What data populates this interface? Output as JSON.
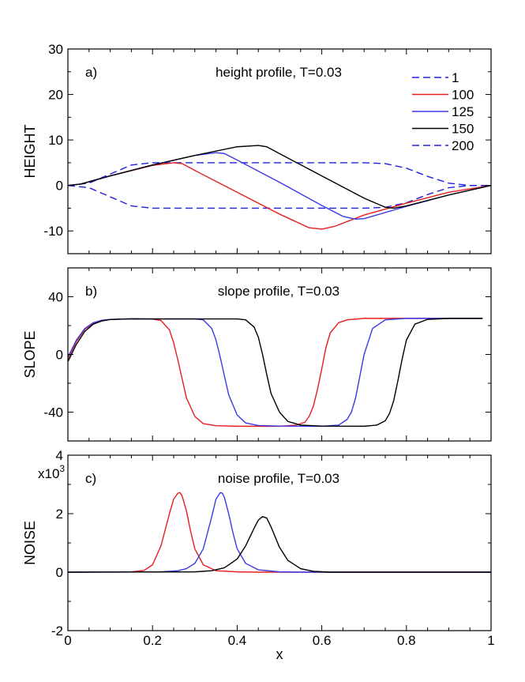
{
  "chart_data": [
    {
      "type": "line",
      "panel_label": "a)",
      "title": "height profile, T=0.03",
      "ylabel": "HEIGHT",
      "xlabel": "",
      "xlim": [
        0,
        1
      ],
      "ylim": [
        -15,
        30
      ],
      "yticks": [
        -10,
        0,
        10,
        20,
        30
      ],
      "ytick_labels": [
        "-10",
        "0",
        "10",
        "20",
        "30"
      ],
      "xticks": [
        0,
        0.2,
        0.4,
        0.6,
        0.8,
        1
      ],
      "xtick_labels": [
        "",
        "",
        "",
        "",
        "",
        ""
      ],
      "legend": [
        {
          "label": "1",
          "color": "#2020e0",
          "dash": "dashed"
        },
        {
          "label": "100",
          "color": "#e81e1e",
          "dash": "solid"
        },
        {
          "label": "125",
          "color": "#3a3ae8",
          "dash": "solid"
        },
        {
          "label": "150",
          "color": "#000000",
          "dash": "solid"
        },
        {
          "label": "200",
          "color": "#2020e0",
          "dash": "dashed"
        }
      ],
      "series": [
        {
          "name": "1",
          "color": "#2020e0",
          "dash": "dashed",
          "x": [
            0,
            0.05,
            0.1,
            0.15,
            0.2,
            0.25,
            0.3,
            0.4,
            0.5,
            0.6,
            0.7,
            0.75,
            0.8,
            0.85,
            0.9,
            0.95,
            1
          ],
          "y": [
            0,
            -0.5,
            -2.5,
            -4.5,
            -5,
            -5,
            -5,
            -5,
            -5,
            -5,
            -5,
            -4.8,
            -3.8,
            -2,
            -0.5,
            0,
            0
          ]
        },
        {
          "name": "200",
          "color": "#2020e0",
          "dash": "dashed",
          "x": [
            0,
            0.05,
            0.1,
            0.15,
            0.2,
            0.25,
            0.3,
            0.4,
            0.5,
            0.6,
            0.7,
            0.75,
            0.8,
            0.85,
            0.9,
            0.95,
            1
          ],
          "y": [
            0,
            0.5,
            2.5,
            4.5,
            5,
            5,
            5,
            5,
            5,
            5,
            5,
            4.8,
            3.8,
            2,
            0.5,
            0,
            0
          ]
        },
        {
          "name": "100",
          "color": "#e81e1e",
          "dash": "solid",
          "x": [
            0,
            0.03,
            0.1,
            0.2,
            0.25,
            0.27,
            0.3,
            0.4,
            0.5,
            0.57,
            0.6,
            0.63,
            0.7,
            0.8,
            0.9,
            1
          ],
          "y": [
            0,
            0.3,
            2.1,
            4.4,
            5,
            4.8,
            3.3,
            -1.5,
            -6.3,
            -9.3,
            -9.6,
            -9,
            -6.5,
            -3.9,
            -1.5,
            0
          ]
        },
        {
          "name": "125",
          "color": "#3a3ae8",
          "dash": "solid",
          "x": [
            0,
            0.03,
            0.1,
            0.2,
            0.3,
            0.35,
            0.37,
            0.4,
            0.5,
            0.6,
            0.65,
            0.68,
            0.7,
            0.8,
            0.9,
            1
          ],
          "y": [
            0,
            0.3,
            2.1,
            4.5,
            6.6,
            7.2,
            7,
            5.6,
            0.7,
            -4.4,
            -6.8,
            -7.4,
            -7.3,
            -4.6,
            -2.1,
            0
          ]
        },
        {
          "name": "150",
          "color": "#000000",
          "dash": "solid",
          "x": [
            0,
            0.03,
            0.1,
            0.2,
            0.3,
            0.4,
            0.45,
            0.47,
            0.5,
            0.6,
            0.7,
            0.75,
            0.77,
            0.8,
            0.9,
            1
          ],
          "y": [
            0,
            0.3,
            2.1,
            4.5,
            6.6,
            8.5,
            8.8,
            8.5,
            7,
            2.1,
            -2.8,
            -4.8,
            -5,
            -4.5,
            -2.1,
            0
          ]
        }
      ]
    },
    {
      "type": "line",
      "panel_label": "b)",
      "title": "slope profile, T=0.03",
      "ylabel": "SLOPE",
      "xlabel": "",
      "xlim": [
        0,
        1
      ],
      "ylim": [
        -60,
        60
      ],
      "yticks": [
        -40,
        0,
        40
      ],
      "ytick_labels": [
        "-40",
        "0",
        "40"
      ],
      "xticks": [
        0,
        0.2,
        0.4,
        0.6,
        0.8,
        1
      ],
      "xtick_labels": [
        "",
        "",
        "",
        "",
        "",
        ""
      ],
      "series": [
        {
          "name": "100",
          "color": "#e81e1e",
          "dash": "solid",
          "x": [
            0,
            0.01,
            0.02,
            0.04,
            0.06,
            0.08,
            0.1,
            0.15,
            0.2,
            0.22,
            0.24,
            0.25,
            0.26,
            0.27,
            0.28,
            0.3,
            0.32,
            0.35,
            0.4,
            0.5,
            0.54,
            0.56,
            0.57,
            0.58,
            0.59,
            0.6,
            0.61,
            0.62,
            0.64,
            0.66,
            0.7,
            0.8,
            0.9,
            0.98
          ],
          "y": [
            -3,
            3,
            9,
            17.5,
            21.5,
            23.5,
            24.3,
            24.7,
            24.5,
            23.5,
            17,
            8,
            -4,
            -17,
            -30,
            -43,
            -48,
            -49.4,
            -49.8,
            -49.8,
            -49,
            -47,
            -43,
            -36,
            -24,
            -10,
            5,
            15,
            22,
            24,
            25,
            25,
            25,
            25
          ]
        },
        {
          "name": "125",
          "color": "#3a3ae8",
          "dash": "solid",
          "x": [
            0,
            0.01,
            0.02,
            0.04,
            0.06,
            0.08,
            0.1,
            0.15,
            0.2,
            0.3,
            0.32,
            0.34,
            0.35,
            0.36,
            0.37,
            0.38,
            0.4,
            0.42,
            0.45,
            0.5,
            0.6,
            0.64,
            0.66,
            0.67,
            0.68,
            0.69,
            0.7,
            0.72,
            0.75,
            0.8,
            0.9,
            0.98
          ],
          "y": [
            -2,
            4,
            10,
            18,
            22,
            23.7,
            24.3,
            24.7,
            24.6,
            24.6,
            24,
            18,
            10,
            -2,
            -15,
            -28,
            -42,
            -47.5,
            -49.3,
            -49.7,
            -49.8,
            -49,
            -45,
            -40,
            -30,
            -15,
            0,
            18,
            24,
            25,
            25,
            25
          ]
        },
        {
          "name": "150",
          "color": "#000000",
          "dash": "solid",
          "x": [
            0,
            0.01,
            0.02,
            0.04,
            0.06,
            0.08,
            0.1,
            0.15,
            0.2,
            0.3,
            0.4,
            0.42,
            0.44,
            0.45,
            0.46,
            0.47,
            0.48,
            0.5,
            0.52,
            0.55,
            0.6,
            0.7,
            0.73,
            0.75,
            0.76,
            0.77,
            0.78,
            0.79,
            0.8,
            0.82,
            0.85,
            0.9,
            0.98
          ],
          "y": [
            -5,
            1,
            7,
            16,
            21,
            23.2,
            24.2,
            24.7,
            24.6,
            24.6,
            24.6,
            24,
            19,
            12,
            0,
            -14,
            -27,
            -40,
            -46.5,
            -49,
            -49.7,
            -49.8,
            -49,
            -46,
            -41,
            -32,
            -18,
            -3,
            10,
            21,
            24.3,
            25,
            25
          ]
        }
      ]
    },
    {
      "type": "line",
      "panel_label": "c)",
      "title": "noise profile, T=0.03",
      "ylabel": "NOISE",
      "xlabel": "x",
      "y_multiplier": "x10",
      "y_multiplier_exp": "3",
      "xlim": [
        0,
        1
      ],
      "ylim": [
        -2,
        4
      ],
      "yticks": [
        -2,
        0,
        2,
        4
      ],
      "ytick_labels": [
        "-2",
        "0",
        "2",
        "4"
      ],
      "xticks": [
        0,
        0.2,
        0.4,
        0.6,
        0.8,
        1
      ],
      "xtick_labels": [
        "0",
        "0.2",
        "0.4",
        "0.6",
        "0.8",
        "1"
      ],
      "series": [
        {
          "name": "100",
          "color": "#e81e1e",
          "dash": "solid",
          "x": [
            0,
            0.15,
            0.18,
            0.2,
            0.22,
            0.24,
            0.25,
            0.26,
            0.265,
            0.27,
            0.28,
            0.29,
            0.3,
            0.32,
            0.35,
            0.4,
            0.45,
            1
          ],
          "y": [
            0,
            0.01,
            0.06,
            0.25,
            0.9,
            2.0,
            2.5,
            2.7,
            2.72,
            2.6,
            2.1,
            1.4,
            0.8,
            0.25,
            0.05,
            0.01,
            0,
            0
          ]
        },
        {
          "name": "125",
          "color": "#3a3ae8",
          "dash": "solid",
          "x": [
            0,
            0.22,
            0.26,
            0.28,
            0.3,
            0.32,
            0.34,
            0.35,
            0.36,
            0.365,
            0.37,
            0.38,
            0.39,
            0.4,
            0.42,
            0.45,
            0.5,
            0.55,
            1
          ],
          "y": [
            0,
            0.01,
            0.05,
            0.12,
            0.3,
            0.8,
            1.9,
            2.5,
            2.72,
            2.7,
            2.55,
            2.0,
            1.35,
            0.8,
            0.3,
            0.08,
            0.01,
            0,
            0
          ]
        },
        {
          "name": "150",
          "color": "#000000",
          "dash": "solid",
          "x": [
            0,
            0.3,
            0.34,
            0.37,
            0.4,
            0.42,
            0.44,
            0.45,
            0.46,
            0.47,
            0.48,
            0.5,
            0.52,
            0.55,
            0.58,
            0.62,
            1
          ],
          "y": [
            0,
            0.01,
            0.05,
            0.15,
            0.45,
            0.9,
            1.5,
            1.78,
            1.9,
            1.85,
            1.55,
            0.85,
            0.4,
            0.12,
            0.03,
            0,
            0
          ]
        }
      ]
    }
  ]
}
